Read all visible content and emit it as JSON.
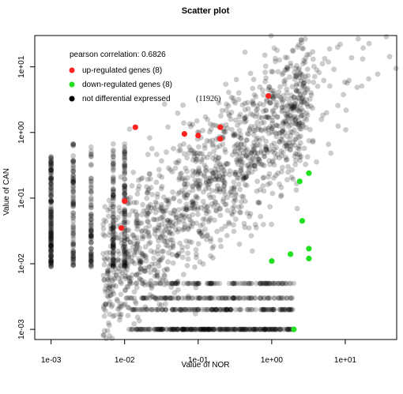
{
  "chart_data": {
    "type": "scatter",
    "title": "Scatter plot",
    "xlabel": "Value of NOR",
    "ylabel": "Value of CAN",
    "x_scale": "log",
    "y_scale": "log",
    "xlim": [
      0.0006,
      50
    ],
    "ylim": [
      0.0007,
      30
    ],
    "x_ticks": [
      0.001,
      0.01,
      0.1,
      1,
      10
    ],
    "x_tick_labels": [
      "1e-03",
      "1e-02",
      "1e-01",
      "1e+00",
      "1e+01"
    ],
    "y_ticks": [
      0.001,
      0.01,
      0.1,
      1,
      10
    ],
    "y_tick_labels": [
      "1e-03",
      "1e-02",
      "1e-01",
      "1e+00",
      "1e+01"
    ],
    "grid": false,
    "legend_position": "top-left",
    "legend": {
      "correlation_label": "pearson correlation: 0.6826",
      "entries": [
        {
          "label": "up-regulated genes (8)",
          "color": "#ff2020",
          "count": ""
        },
        {
          "label": "down-regulated genes (8)",
          "color": "#20e020",
          "count": ""
        },
        {
          "label": "not differential expressed",
          "color": "#000000",
          "count": "(11926)"
        }
      ]
    },
    "series": [
      {
        "name": "up-regulated genes (8)",
        "color": "#ff2020",
        "points": [
          [
            0.009,
            0.035
          ],
          [
            0.01,
            0.09
          ],
          [
            0.014,
            1.2
          ],
          [
            0.065,
            0.95
          ],
          [
            0.1,
            0.9
          ],
          [
            0.2,
            1.2
          ],
          [
            0.2,
            0.8
          ],
          [
            0.9,
            3.6
          ]
        ]
      },
      {
        "name": "down-regulated genes (8)",
        "color": "#20e020",
        "points": [
          [
            3.2,
            0.24
          ],
          [
            2.4,
            0.18
          ],
          [
            2.6,
            0.045
          ],
          [
            3.2,
            0.017
          ],
          [
            3.2,
            0.012
          ],
          [
            1.8,
            0.014
          ],
          [
            1.0,
            0.011
          ],
          [
            2.0,
            0.001
          ]
        ]
      },
      {
        "name": "not differential expressed",
        "color": "#000000",
        "opacity": 0.2,
        "points_count": 11926,
        "description": "dense cloud of points along the diagonal; vertical stripes at low NOR values (1e-03, 2e-03, 3.5e-03, 7e-03, 1e-02) and horizontal stripes at low CAN values (1e-03, 2e-03, 3e-03, 5e-03)"
      }
    ]
  }
}
